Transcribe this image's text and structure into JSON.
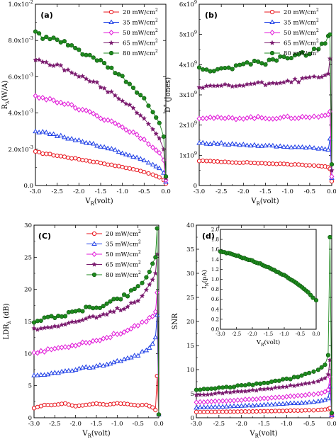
{
  "colors": {
    "20 mW/cm2": "#e8141c",
    "35 mW/cm2": "#1f3fe6",
    "50 mW/cm2": "#e11ad8",
    "65 mW/cm2": "#7a1a6e",
    "80 mW/cm2": "#1e8a1e"
  },
  "chart_data": [
    {
      "type": "line",
      "panel": "(a)",
      "xlabel": "V_R(volt)",
      "ylabel": "R_λ(W/A)",
      "xlim": [
        -3.0,
        0.0
      ],
      "ylim": [
        0,
        0.01
      ],
      "xticks": [
        "-3.0",
        "-2.5",
        "-2.0",
        "-1.5",
        "-1.0",
        "-0.5",
        "0.0"
      ],
      "yticks": [
        "0.0",
        "2.0x10⁻³",
        "4.0x10⁻³",
        "6.0x10⁻³",
        "8.0x10⁻³",
        "1.0x10⁻²"
      ],
      "legend_position": "top-right",
      "x": [
        -3.0,
        -2.75,
        -2.5,
        -2.25,
        -2.0,
        -1.75,
        -1.5,
        -1.25,
        -1.0,
        -0.75,
        -0.5,
        -0.3,
        -0.15,
        -0.05,
        0.0
      ],
      "series": [
        {
          "name": "20 mW/cm²",
          "values": [
            0.00185,
            0.00175,
            0.00165,
            0.00155,
            0.00145,
            0.00135,
            0.00125,
            0.00113,
            0.00102,
            0.0009,
            0.00075,
            0.0006,
            0.00045,
            0.0003,
            0.0001
          ]
        },
        {
          "name": "35 mW/cm²",
          "values": [
            0.003,
            0.0029,
            0.00275,
            0.00262,
            0.00248,
            0.00232,
            0.00216,
            0.002,
            0.0018,
            0.0016,
            0.00138,
            0.00115,
            0.00095,
            0.0007,
            0.0002
          ]
        },
        {
          "name": "50 mW/cm²",
          "values": [
            0.0049,
            0.0048,
            0.00465,
            0.00445,
            0.00425,
            0.004,
            0.00375,
            0.0035,
            0.0032,
            0.0029,
            0.0025,
            0.0021,
            0.0018,
            0.0014,
            0.0003
          ]
        },
        {
          "name": "65 mW/cm²",
          "values": [
            0.007,
            0.0068,
            0.0066,
            0.00635,
            0.00605,
            0.00578,
            0.0055,
            0.0051,
            0.0047,
            0.00425,
            0.0037,
            0.0031,
            0.0026,
            0.002,
            0.0004
          ]
        },
        {
          "name": "80 mW/cm²",
          "values": [
            0.00845,
            0.0081,
            0.008,
            0.00775,
            0.00745,
            0.00715,
            0.0068,
            0.0064,
            0.00595,
            0.0054,
            0.00475,
            0.00405,
            0.00345,
            0.0027,
            0.0005
          ]
        }
      ]
    },
    {
      "type": "line",
      "panel": "(b)",
      "xlabel": "V_R(volt)",
      "ylabel": "D*(Jones)",
      "xlim": [
        -3.0,
        0.0
      ],
      "ylim": [
        0,
        6000000000.0
      ],
      "xticks": [
        "-3.0",
        "-2.5",
        "-2.0",
        "-1.5",
        "-1.0",
        "-0.5",
        "0.0"
      ],
      "yticks": [
        "0",
        "1x10⁹",
        "2x10⁹",
        "3x10⁹",
        "4x10⁹",
        "5x10⁹",
        "6x10⁹"
      ],
      "legend_position": "top-right",
      "x": [
        -3.0,
        -2.75,
        -2.5,
        -2.25,
        -2.0,
        -1.75,
        -1.5,
        -1.25,
        -1.0,
        -0.75,
        -0.5,
        -0.3,
        -0.15,
        -0.08,
        -0.04,
        0.0
      ],
      "series": [
        {
          "name": "20 mW/cm²",
          "values": [
            820000000.0,
            800000000.0,
            790000000.0,
            770000000.0,
            760000000.0,
            750000000.0,
            730000000.0,
            720000000.0,
            700000000.0,
            690000000.0,
            670000000.0,
            650000000.0,
            630000000.0,
            600000000.0,
            550000000.0,
            140000000.0
          ]
        },
        {
          "name": "35 mW/cm²",
          "values": [
            1400000000.0,
            1380000000.0,
            1390000000.0,
            1360000000.0,
            1350000000.0,
            1330000000.0,
            1320000000.0,
            1300000000.0,
            1280000000.0,
            1270000000.0,
            1250000000.0,
            1220000000.0,
            1200000000.0,
            1180000000.0,
            1550000000.0,
            250000000.0
          ]
        },
        {
          "name": "50 mW/cm²",
          "values": [
            2250000000.0,
            2250000000.0,
            2220000000.0,
            2220000000.0,
            2240000000.0,
            2250000000.0,
            2230000000.0,
            2240000000.0,
            2250000000.0,
            2250000000.0,
            2270000000.0,
            2280000000.0,
            2320000000.0,
            2350000000.0,
            2450000000.0,
            300000000.0
          ]
        },
        {
          "name": "65 mW/cm²",
          "values": [
            3250000000.0,
            3250000000.0,
            3300000000.0,
            3280000000.0,
            3320000000.0,
            3380000000.0,
            3350000000.0,
            3420000000.0,
            3450000000.0,
            3480000000.0,
            3550000000.0,
            3600000000.0,
            3650000000.0,
            3700000000.0,
            4200000000.0,
            500000000.0
          ]
        },
        {
          "name": "80 mW/cm²",
          "values": [
            3850000000.0,
            3800000000.0,
            3900000000.0,
            3880000000.0,
            4000000000.0,
            4080000000.0,
            4050000000.0,
            4180000000.0,
            4250000000.0,
            4300000000.0,
            4400000000.0,
            4550000000.0,
            4700000000.0,
            4950000000.0,
            5000000000.0,
            700000000.0
          ]
        }
      ]
    },
    {
      "type": "line",
      "panel": "(C)",
      "xlabel": "V_R(volt)",
      "ylabel": "LDR_λ(dB)",
      "xlim": [
        -3.0,
        0.0
      ],
      "ylim": [
        0,
        30
      ],
      "xticks": [
        "-3.0",
        "-2.5",
        "-2.0",
        "-1.5",
        "-1.0",
        "-0.5",
        "0.0"
      ],
      "yticks": [
        "0",
        "5",
        "10",
        "15",
        "20",
        "25",
        "30"
      ],
      "legend_position": "top-right",
      "x": [
        -3.0,
        -2.75,
        -2.5,
        -2.25,
        -2.0,
        -1.75,
        -1.5,
        -1.25,
        -1.0,
        -0.75,
        -0.5,
        -0.3,
        -0.15,
        -0.08,
        -0.04,
        0.0
      ],
      "series": [
        {
          "name": "20 mW/cm²",
          "values": [
            1.5,
            2.0,
            2.0,
            2.2,
            1.8,
            2.0,
            2.2,
            2.0,
            2.3,
            2.1,
            1.9,
            2.0,
            1.6,
            1.2,
            6.5,
            0.5
          ]
        },
        {
          "name": "35 mW/cm²",
          "values": [
            6.5,
            6.6,
            7.0,
            7.2,
            7.4,
            7.8,
            8.0,
            8.3,
            8.8,
            9.2,
            9.8,
            10.5,
            11.5,
            12.5,
            16.0,
            0.5
          ]
        },
        {
          "name": "50 mW/cm²",
          "values": [
            10.2,
            10.4,
            10.8,
            11.0,
            11.4,
            11.8,
            12.0,
            12.5,
            13.1,
            13.6,
            14.3,
            15.0,
            15.8,
            16.5,
            19.5,
            0.5
          ]
        },
        {
          "name": "65 mW/cm²",
          "values": [
            13.8,
            14.0,
            14.4,
            14.6,
            15.0,
            15.4,
            15.6,
            16.1,
            16.8,
            17.4,
            18.5,
            20.0,
            21.5,
            22.5,
            25.5,
            0.5
          ]
        },
        {
          "name": "80 mW/cm²",
          "values": [
            15.0,
            15.4,
            15.8,
            16.0,
            16.5,
            17.0,
            17.2,
            17.8,
            18.5,
            19.2,
            20.5,
            22.0,
            24.0,
            25.0,
            29.5,
            0.5
          ]
        }
      ]
    },
    {
      "type": "line",
      "panel": "(d)",
      "xlabel": "V_R(volt)",
      "ylabel": "SNR",
      "xlim": [
        -3.0,
        0.0
      ],
      "ylim": [
        0,
        40
      ],
      "xticks": [
        "-3.0",
        "-2.5",
        "-2.0",
        "-1.5",
        "-1.0",
        "-0.5",
        "0.0"
      ],
      "yticks": [
        "0",
        "5",
        "10",
        "15",
        "20",
        "25",
        "30",
        "35",
        "40"
      ],
      "legend_position": "top-right",
      "x": [
        -3.0,
        -2.75,
        -2.5,
        -2.25,
        -2.0,
        -1.75,
        -1.5,
        -1.25,
        -1.0,
        -0.75,
        -0.5,
        -0.3,
        -0.15,
        -0.08,
        -0.04,
        0.0
      ],
      "series": [
        {
          "name": "20 mW/cm²",
          "values": [
            1.2,
            1.2,
            1.25,
            1.25,
            1.3,
            1.3,
            1.35,
            1.4,
            1.45,
            1.5,
            1.55,
            1.6,
            1.7,
            1.8,
            2.0,
            0.3
          ]
        },
        {
          "name": "35 mW/cm²",
          "values": [
            2.1,
            2.2,
            2.3,
            2.35,
            2.45,
            2.55,
            2.65,
            2.75,
            2.9,
            3.05,
            3.2,
            3.4,
            3.7,
            4.0,
            6.5,
            0.5
          ]
        },
        {
          "name": "50 mW/cm²",
          "values": [
            3.2,
            3.3,
            3.45,
            3.55,
            3.7,
            3.85,
            4.0,
            4.15,
            4.35,
            4.55,
            4.8,
            5.0,
            5.4,
            5.8,
            8.5,
            0.7
          ]
        },
        {
          "name": "65 mW/cm²",
          "values": [
            4.8,
            4.9,
            5.1,
            5.3,
            5.5,
            5.7,
            5.9,
            6.2,
            6.5,
            6.8,
            7.2,
            7.6,
            8.2,
            9.0,
            12.0,
            0.8
          ]
        },
        {
          "name": "80 mW/cm²",
          "values": [
            5.8,
            6.0,
            6.2,
            6.4,
            6.7,
            6.9,
            7.2,
            7.6,
            8.0,
            8.5,
            9.2,
            10.0,
            11.0,
            13.0,
            37.5,
            1.0
          ]
        }
      ],
      "inset": {
        "type": "line",
        "xlabel": "V_R(volt)",
        "ylabel": "I_N(pA)",
        "xlim": [
          -3.0,
          0.0
        ],
        "ylim": [
          0,
          2.0
        ],
        "xticks": [
          "-3.0",
          "-2.5",
          "-2.0",
          "-1.5",
          "-1.0",
          "-0.5",
          "0.0"
        ],
        "yticks": [
          "0.0",
          "0.2",
          "0.4",
          "0.6",
          "0.8",
          "1.0",
          "1.2",
          "1.4",
          "1.6",
          "1.8",
          "2.0"
        ],
        "x": [
          -3.0,
          -2.75,
          -2.5,
          -2.25,
          -2.0,
          -1.75,
          -1.5,
          -1.25,
          -1.0,
          -0.75,
          -0.5,
          -0.25,
          -0.1,
          0.0
        ],
        "values": [
          1.55,
          1.52,
          1.48,
          1.42,
          1.37,
          1.31,
          1.24,
          1.16,
          1.08,
          0.98,
          0.87,
          0.74,
          0.63,
          0.58
        ]
      }
    }
  ],
  "legend": {
    "prefix": [
      "20",
      "35",
      "50",
      "65",
      "80"
    ],
    "unit": "mW/cm",
    "sup": "2"
  },
  "figure_text": {
    "a_label": "(a)",
    "b_label": "(b)",
    "c_label": "(C)",
    "d_label": "(d)",
    "a_ylabel_main": "R",
    "a_ylabel_sub": "λ",
    "a_ylabel_tail": "(W/A)",
    "b_ylabel_main": "D",
    "b_ylabel_sup": "*",
    "b_ylabel_tail": " (Jones)",
    "c_ylabel_main": "LDR",
    "c_ylabel_sub": "λ",
    "c_ylabel_tail": " (dB)",
    "d_ylabel": "SNR",
    "xlabel_main": "V",
    "xlabel_sub": "R",
    "xlabel_tail": "(volt)",
    "inset_ylabel_main": "I",
    "inset_ylabel_sub": "N",
    "inset_ylabel_tail": "(pA)"
  }
}
